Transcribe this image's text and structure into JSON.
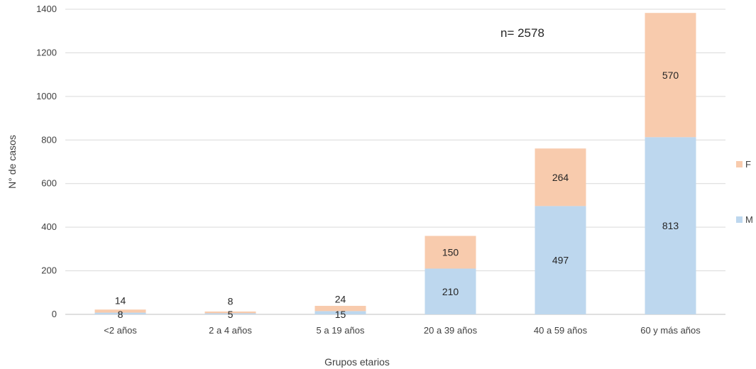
{
  "chart_data": {
    "type": "bar",
    "stacked": true,
    "categories": [
      "<2 años",
      "2 a 4 años",
      "5 a 19 años",
      "20 a 39 años",
      "40 a 59 años",
      "60 y más años"
    ],
    "series": [
      {
        "name": "M",
        "color": "#bdd7ee",
        "values": [
          8,
          5,
          15,
          210,
          497,
          813
        ]
      },
      {
        "name": "F",
        "color": "#f8cbad",
        "values": [
          14,
          8,
          24,
          150,
          264,
          570
        ]
      }
    ],
    "xlabel": "Grupos etarios",
    "ylabel": "N° de casos",
    "ylim": [
      0,
      1400
    ],
    "yticks": [
      0,
      200,
      400,
      600,
      800,
      1000,
      1200,
      1400
    ],
    "grid": true,
    "legend_position": "right",
    "annotation": "n= 2578"
  }
}
